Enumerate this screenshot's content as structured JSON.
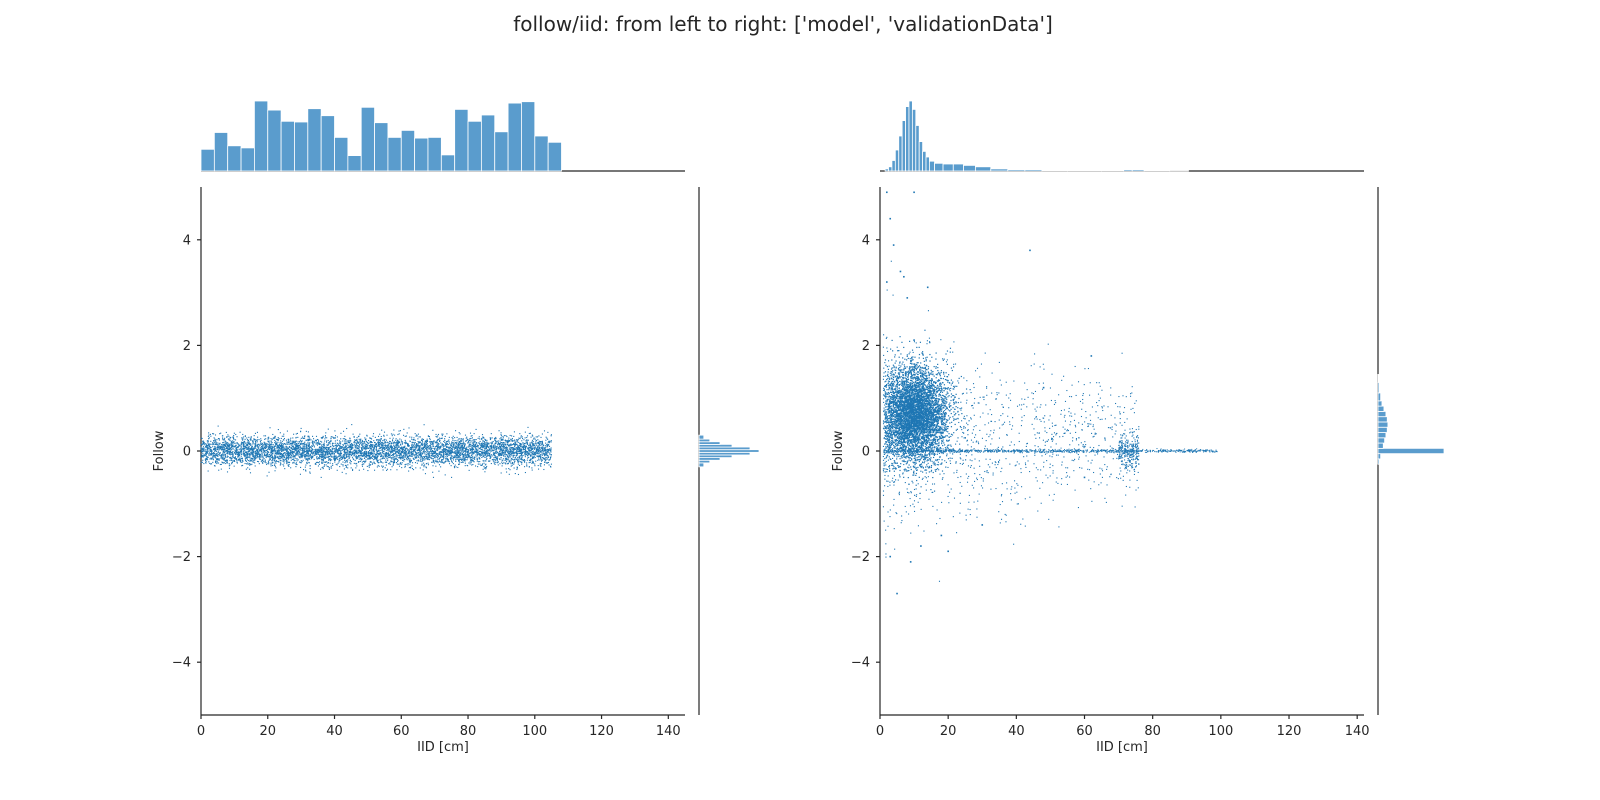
{
  "title": "follow/iid: from left to right: ['model', 'validationData']",
  "colors": {
    "scatter": "#1f77b4",
    "hist": "#5a9ccd",
    "spine": "#262626",
    "text": "#262626"
  },
  "chart_data": [
    {
      "type": "scatter",
      "name": "model",
      "xlabel": "IID [cm]",
      "ylabel": "Follow",
      "xlim": [
        0,
        145
      ],
      "ylim": [
        -5,
        5
      ],
      "xticks": [
        0,
        20,
        40,
        60,
        80,
        100,
        120,
        140
      ],
      "yticks": [
        -4,
        -2,
        0,
        2,
        4
      ],
      "grid": false,
      "scatter_summary": {
        "x_range": [
          0,
          105
        ],
        "y_center": 0,
        "y_spread": 0.25,
        "y_max": 0.5,
        "y_min": -0.5
      },
      "x_marginal_hist": {
        "bin_width": 4.0,
        "bin_start": 0,
        "counts": [
          0.31,
          0.55,
          0.36,
          0.33,
          1.0,
          0.87,
          0.71,
          0.7,
          0.89,
          0.79,
          0.48,
          0.22,
          0.91,
          0.69,
          0.48,
          0.58,
          0.47,
          0.48,
          0.23,
          0.88,
          0.71,
          0.8,
          0.56,
          0.97,
          0.99,
          0.5,
          0.41
        ]
      },
      "y_marginal_hist": {
        "bin_centers": [
          -0.25,
          -0.2,
          -0.15,
          -0.1,
          -0.05,
          0.0,
          0.05,
          0.1,
          0.15,
          0.2,
          0.25
        ],
        "counts": [
          0.08,
          0.18,
          0.35,
          0.55,
          0.85,
          1.0,
          0.85,
          0.55,
          0.35,
          0.18,
          0.08
        ]
      }
    },
    {
      "type": "scatter",
      "name": "validationData",
      "xlabel": "IID [cm]",
      "ylabel": "Follow",
      "xlim": [
        0,
        142
      ],
      "ylim": [
        -5,
        5
      ],
      "xticks": [
        0,
        20,
        40,
        60,
        80,
        100,
        120,
        140
      ],
      "yticks": [
        -4,
        -2,
        0,
        2,
        4
      ],
      "grid": false,
      "scatter_summary": {
        "dense_cluster_x": [
          2,
          22
        ],
        "dense_cluster_y": [
          -0.3,
          1.8
        ],
        "zero_line_x": [
          0,
          99
        ],
        "outliers_y_max": 5,
        "outliers_y_min": -2.7
      },
      "x_marginal_hist": {
        "bin_centers": [
          2,
          3,
          4,
          5,
          6,
          7,
          8,
          9,
          10,
          11,
          12,
          13,
          14,
          15,
          17,
          20,
          23,
          26,
          30,
          35,
          40,
          45,
          50,
          60,
          70,
          73,
          75,
          80,
          90
        ],
        "counts": [
          0.03,
          0.06,
          0.15,
          0.3,
          0.5,
          0.72,
          0.92,
          1.0,
          0.88,
          0.65,
          0.42,
          0.28,
          0.2,
          0.14,
          0.11,
          0.1,
          0.1,
          0.08,
          0.06,
          0.03,
          0.02,
          0.02,
          0.01,
          0.01,
          0.01,
          0.02,
          0.02,
          0.01,
          0.005
        ]
      },
      "y_marginal_hist": {
        "bin_centers": [
          -0.2,
          -0.1,
          0.0,
          0.1,
          0.2,
          0.3,
          0.4,
          0.5,
          0.6,
          0.7,
          0.8,
          0.9,
          1.0,
          1.2,
          1.4
        ],
        "counts": [
          0.02,
          0.04,
          1.0,
          0.08,
          0.1,
          0.12,
          0.14,
          0.15,
          0.14,
          0.12,
          0.09,
          0.06,
          0.04,
          0.02,
          0.01
        ]
      }
    }
  ]
}
